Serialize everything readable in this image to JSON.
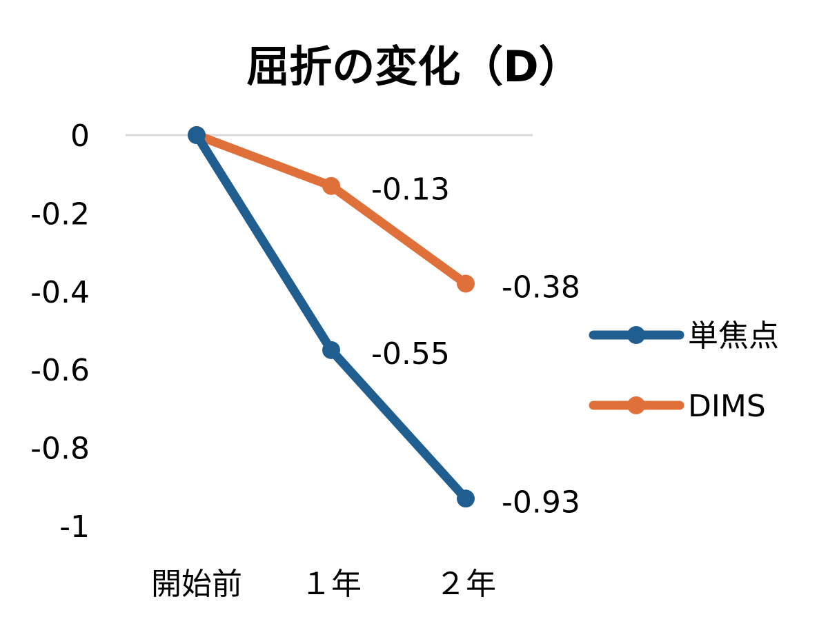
{
  "chart_data": {
    "type": "line",
    "title": "屈折の変化（D）",
    "xlabel": "",
    "ylabel": "",
    "categories": [
      "開始前",
      "１年",
      "２年"
    ],
    "ylim": [
      -1,
      0
    ],
    "yticks": [
      0,
      -0.2,
      -0.4,
      -0.6,
      -0.8,
      -1
    ],
    "ytick_labels": [
      "0",
      "-0.2",
      "-0.4",
      "-0.6",
      "-0.8",
      "-1"
    ],
    "grid": "zero-line only",
    "legend_position": "right",
    "series": [
      {
        "name": "単焦点",
        "color": "#1F5E8F",
        "values": [
          0,
          -0.55,
          -0.93
        ],
        "labels": [
          "",
          "-0.55",
          "-0.93"
        ]
      },
      {
        "name": "DIMS",
        "color": "#E0703A",
        "values": [
          0,
          -0.13,
          -0.38
        ],
        "labels": [
          "",
          "-0.13",
          "-0.38"
        ]
      }
    ]
  }
}
